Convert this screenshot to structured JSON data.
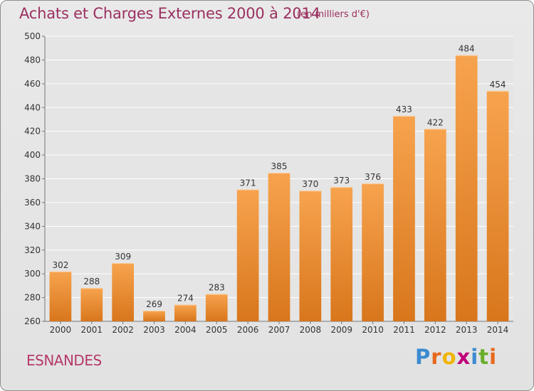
{
  "header": {
    "title": "Achats et Charges Externes 2000 à 2014",
    "unit": "(en milliers d'€)"
  },
  "footer": {
    "commune": "ESNANDES",
    "logo_letters": [
      "P",
      "r",
      "o",
      "x",
      "i",
      "t",
      "i"
    ],
    "logo_colors": [
      "#3b8bd0",
      "#e8681c",
      "#f0b400",
      "#c0007a",
      "#3b8bd0",
      "#6aae2a",
      "#e8681c"
    ]
  },
  "colors": {
    "bar_light": "#f7a34e",
    "bar_dark": "#d8761c",
    "grid": "#ffffff",
    "axis_text": "#333333",
    "plot_bg": "#e5e5e5"
  },
  "chart_data": {
    "type": "bar",
    "title": "Achats et Charges Externes 2000 à 2014",
    "subtitle": "(en milliers d'€)",
    "xlabel": "",
    "ylabel": "",
    "categories": [
      "2000",
      "2001",
      "2002",
      "2003",
      "2004",
      "2005",
      "2006",
      "2007",
      "2008",
      "2009",
      "2010",
      "2011",
      "2012",
      "2013",
      "2014"
    ],
    "values": [
      302,
      288,
      309,
      269,
      274,
      283,
      371,
      385,
      370,
      373,
      376,
      433,
      422,
      484,
      454
    ],
    "ylim": [
      260,
      500
    ],
    "yticks": [
      260,
      280,
      300,
      320,
      340,
      360,
      380,
      400,
      420,
      440,
      460,
      480,
      500
    ],
    "grid": true,
    "data_labels": true
  }
}
